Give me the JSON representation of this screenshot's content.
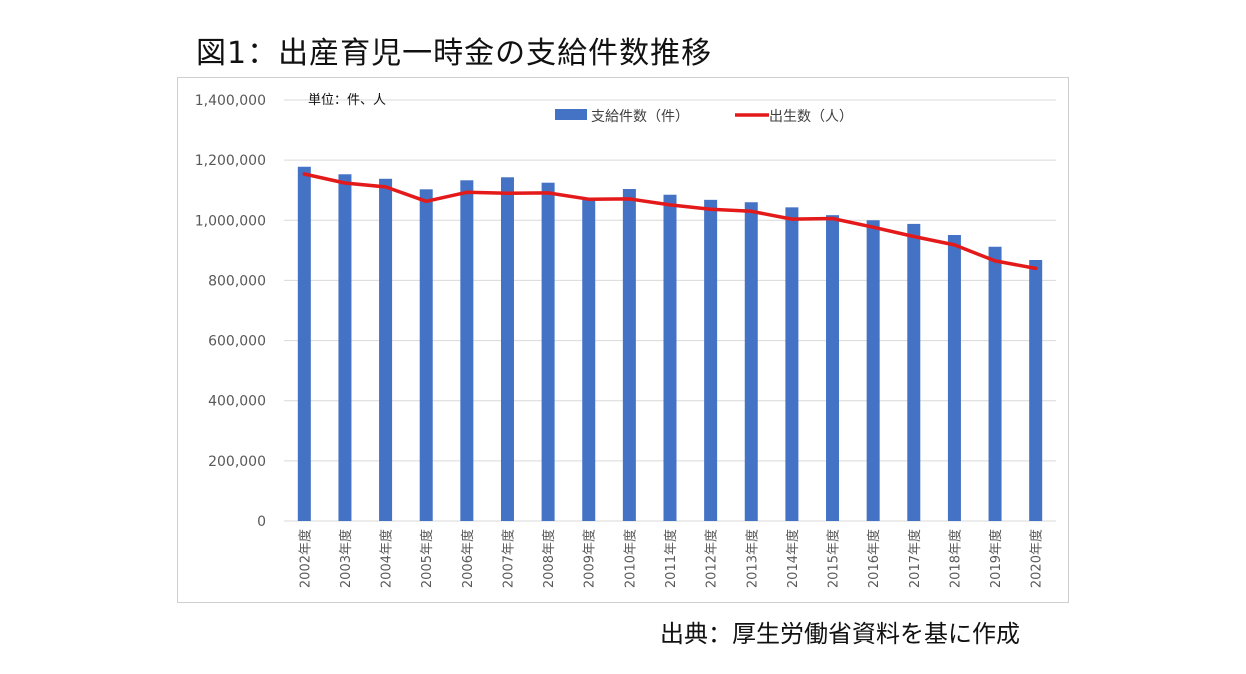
{
  "title": "図1：出産育児一時金の支給件数推移",
  "source": "出典：厚生労働省資料を基に作成",
  "colors": {
    "bar": "#4472C4",
    "line": "#E41A1A",
    "grid": "#d9d9d9",
    "axis_text": "#595959"
  },
  "chart_data": {
    "type": "bar",
    "title": "",
    "unit_label": "単位：件、人",
    "xlabel": "",
    "ylabel": "",
    "ylim": [
      0,
      1400000
    ],
    "y_ticks": [
      0,
      200000,
      400000,
      600000,
      800000,
      1000000,
      1200000,
      1400000
    ],
    "y_tick_labels": [
      "0",
      "200,000",
      "400,000",
      "600,000",
      "800,000",
      "1,000,000",
      "1,200,000",
      "1,400,000"
    ],
    "grid": true,
    "legend_position": "top",
    "categories": [
      "2002年度",
      "2003年度",
      "2004年度",
      "2005年度",
      "2006年度",
      "2007年度",
      "2008年度",
      "2009年度",
      "2010年度",
      "2011年度",
      "2012年度",
      "2013年度",
      "2014年度",
      "2015年度",
      "2016年度",
      "2017年度",
      "2018年度",
      "2019年度",
      "2020年度"
    ],
    "series": [
      {
        "name": "支給件数（件）",
        "type": "bar",
        "values": [
          1178000,
          1153000,
          1138000,
          1103000,
          1133000,
          1143000,
          1125000,
          1068000,
          1104000,
          1085000,
          1068000,
          1060000,
          1043000,
          1017000,
          1000000,
          988000,
          951000,
          912000,
          868000
        ]
      },
      {
        "name": "出生数（人）",
        "type": "line",
        "values": [
          1154000,
          1124000,
          1111000,
          1063000,
          1093000,
          1090000,
          1091000,
          1070000,
          1071000,
          1051000,
          1037000,
          1030000,
          1004000,
          1006000,
          977000,
          946000,
          918000,
          865000,
          840000
        ]
      }
    ]
  }
}
